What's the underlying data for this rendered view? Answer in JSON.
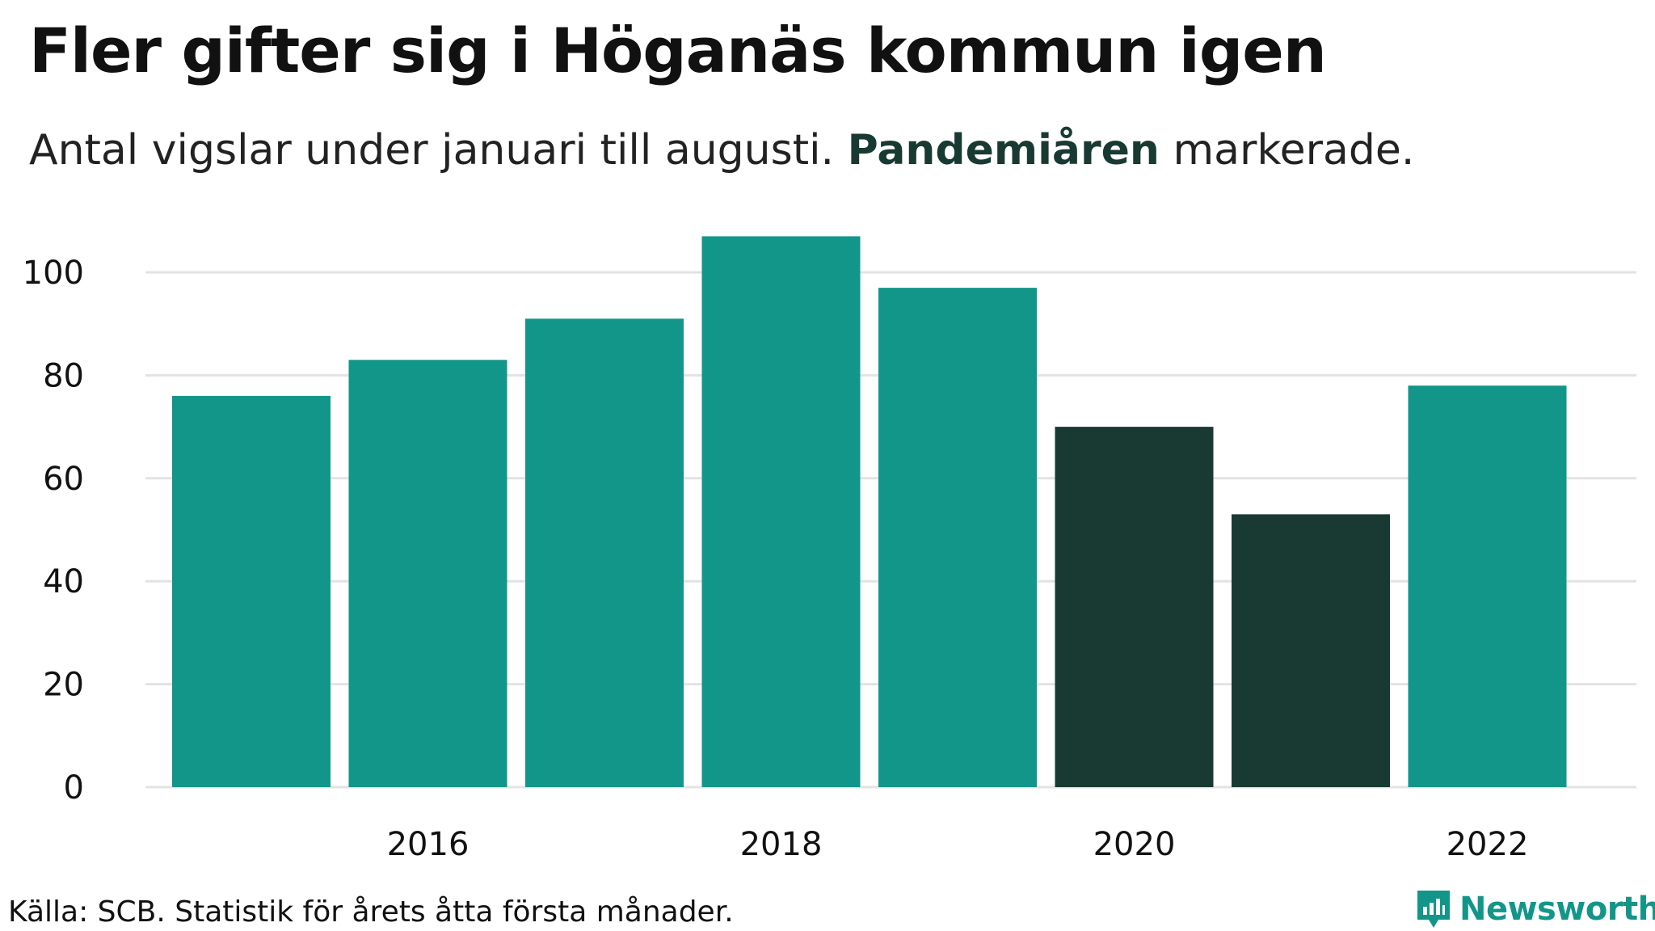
{
  "title": "Fler gifter sig i Höganäs kommun igen",
  "subtitle": {
    "before": "Antal vigslar under januari till augusti. ",
    "highlight": "Pandemiåren",
    "after": " markerade."
  },
  "footer": "Källa: SCB. Statistik för årets åtta första månader.",
  "brand": {
    "name": "Newsworthy",
    "icon": "newsworthy-logo-icon"
  },
  "colors": {
    "normal": "#13968a",
    "pandemic": "#183a33",
    "grid": "#e3e3e3",
    "text": "#111111"
  },
  "chart_data": {
    "type": "bar",
    "title": "Fler gifter sig i Höganäs kommun igen",
    "xlabel": "",
    "ylabel": "",
    "ylim": [
      0,
      110
    ],
    "yticks": [
      0,
      20,
      40,
      60,
      80,
      100
    ],
    "x": [
      2015,
      2016,
      2017,
      2018,
      2019,
      2020,
      2021,
      2022
    ],
    "xtick_labels": [
      "2016",
      "2018",
      "2020",
      "2022"
    ],
    "values": [
      76,
      83,
      91,
      107,
      97,
      70,
      53,
      78
    ],
    "highlighted": [
      false,
      false,
      false,
      false,
      false,
      true,
      true,
      false
    ],
    "grid": true
  }
}
